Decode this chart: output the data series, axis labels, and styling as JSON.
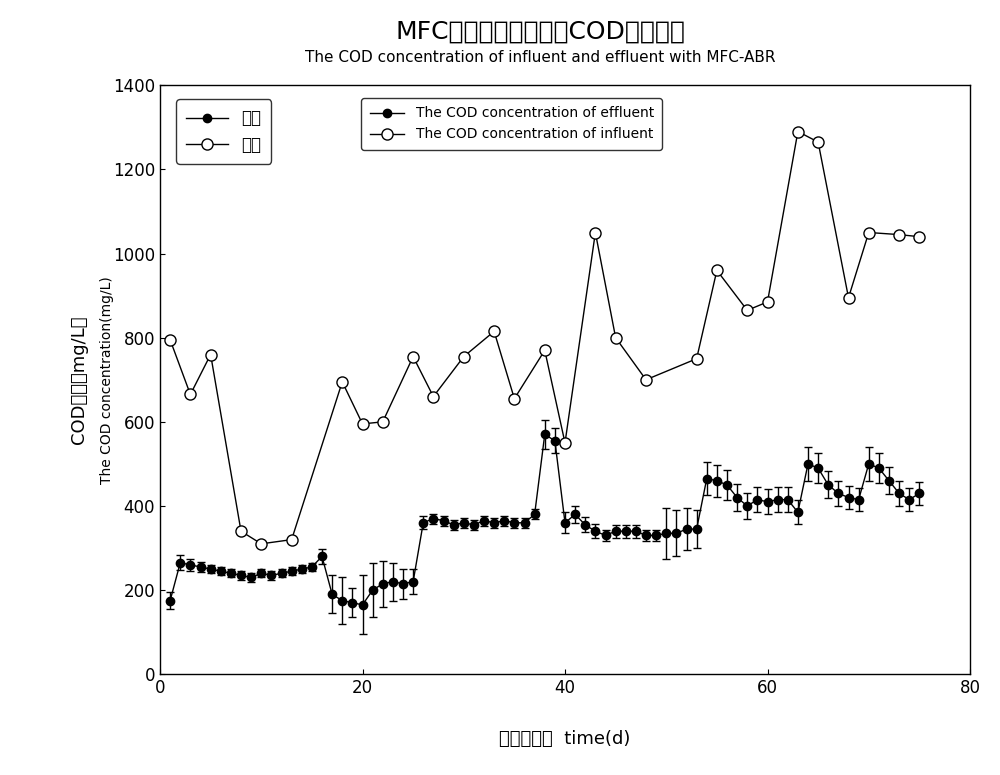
{
  "title_cn": "MFC耦合反应器进出水COD浓度比较",
  "title_en": "The COD concentration of influent and effluent with MFC-ABR",
  "xlabel_cn": "时间（天）",
  "xlabel_en": "time(d)",
  "ylabel_cn": "COD浓度（mg/L）",
  "ylabel_en": "The COD concentration(mg/L)",
  "xlim": [
    0,
    80
  ],
  "ylim": [
    0,
    1400
  ],
  "xticks": [
    0,
    20,
    40,
    60,
    80
  ],
  "yticks": [
    0,
    200,
    400,
    600,
    800,
    1000,
    1200,
    1400
  ],
  "effluent_x": [
    1,
    2,
    3,
    4,
    5,
    6,
    7,
    8,
    9,
    10,
    11,
    12,
    13,
    14,
    15,
    16,
    17,
    18,
    19,
    20,
    21,
    22,
    23,
    24,
    25,
    26,
    27,
    28,
    29,
    30,
    31,
    32,
    33,
    34,
    35,
    36,
    37,
    38,
    39,
    40,
    41,
    42,
    43,
    44,
    45,
    46,
    47,
    48,
    49,
    50,
    51,
    52,
    53,
    54,
    55,
    56,
    57,
    58,
    59,
    60,
    61,
    62,
    63,
    64,
    65,
    66,
    67,
    68,
    69,
    70,
    71,
    72,
    73,
    74,
    75
  ],
  "effluent_y": [
    175,
    265,
    260,
    255,
    250,
    245,
    240,
    235,
    230,
    240,
    235,
    240,
    245,
    250,
    255,
    280,
    190,
    175,
    170,
    165,
    200,
    215,
    220,
    215,
    220,
    360,
    370,
    365,
    355,
    360,
    355,
    365,
    360,
    365,
    360,
    360,
    380,
    570,
    555,
    360,
    380,
    355,
    340,
    330,
    340,
    340,
    340,
    330,
    330,
    335,
    335,
    345,
    345,
    465,
    460,
    450,
    420,
    400,
    415,
    410,
    415,
    415,
    385,
    500,
    490,
    450,
    430,
    420,
    415,
    500,
    490,
    460,
    430,
    415,
    430
  ],
  "effluent_err": [
    20,
    18,
    15,
    12,
    10,
    10,
    10,
    10,
    10,
    10,
    10,
    10,
    10,
    10,
    10,
    18,
    45,
    55,
    35,
    70,
    65,
    55,
    45,
    35,
    30,
    15,
    12,
    12,
    12,
    12,
    12,
    12,
    12,
    12,
    12,
    12,
    12,
    35,
    30,
    25,
    20,
    18,
    16,
    14,
    15,
    15,
    15,
    14,
    14,
    60,
    55,
    50,
    45,
    40,
    38,
    35,
    32,
    30,
    30,
    30,
    30,
    30,
    28,
    40,
    35,
    32,
    30,
    28,
    28,
    40,
    35,
    32,
    30,
    28,
    28
  ],
  "influent_x": [
    1,
    3,
    5,
    8,
    10,
    13,
    18,
    20,
    22,
    25,
    27,
    30,
    33,
    35,
    38,
    40,
    43,
    45,
    48,
    53,
    55,
    58,
    60,
    63,
    65,
    68,
    70,
    73,
    75
  ],
  "influent_y": [
    795,
    665,
    760,
    340,
    310,
    320,
    695,
    595,
    600,
    755,
    660,
    755,
    815,
    655,
    770,
    550,
    1050,
    800,
    700,
    750,
    960,
    865,
    885,
    1290,
    1265,
    895,
    1050,
    1045,
    1040
  ],
  "legend_cn_effluent": "出水",
  "legend_cn_influent": "进水",
  "legend_en_effluent": "The COD concentration of effluent",
  "legend_en_influent": "The COD concentration of influent",
  "line_color": "#000000",
  "bg_color": "#ffffff",
  "marker_size_filled": 6,
  "marker_size_open": 8
}
